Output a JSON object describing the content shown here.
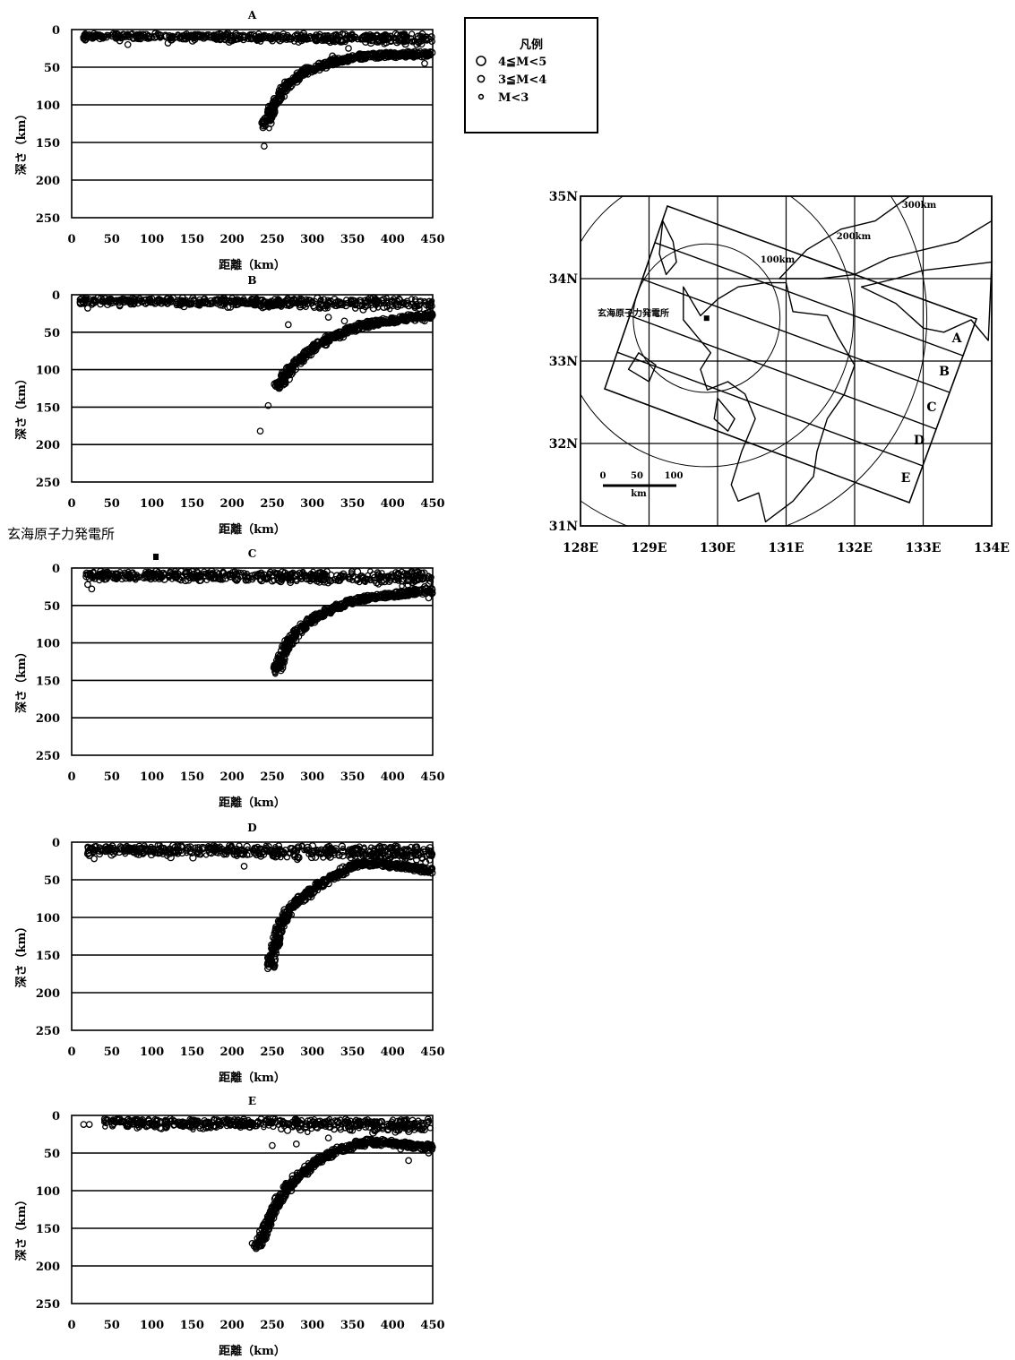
{
  "chart_data": [
    {
      "type": "scatter",
      "title": "A",
      "xlabel": "距離（km）",
      "ylabel": "深さ（km）",
      "xlim": [
        0,
        450
      ],
      "ylim": [
        250,
        0
      ],
      "x_ticks": [
        "0",
        "50",
        "100",
        "150",
        "200",
        "250",
        "300",
        "350",
        "400",
        "450"
      ],
      "y_ticks": [
        "0",
        "50",
        "100",
        "150",
        "200",
        "250"
      ],
      "grid": "horizontal",
      "shallow_band": {
        "x_range": [
          15,
          450
        ],
        "depth_range": [
          5,
          22
        ]
      },
      "slab_curve": [
        [
          450,
          32
        ],
        [
          420,
          33
        ],
        [
          390,
          34
        ],
        [
          360,
          36
        ],
        [
          340,
          40
        ],
        [
          320,
          45
        ],
        [
          300,
          52
        ],
        [
          285,
          60
        ],
        [
          270,
          72
        ],
        [
          260,
          85
        ],
        [
          252,
          100
        ],
        [
          245,
          118
        ],
        [
          242,
          128
        ]
      ],
      "points": [
        [
          15,
          12
        ],
        [
          17,
          14
        ],
        [
          20,
          10
        ],
        [
          240,
          155
        ],
        [
          325,
          35
        ],
        [
          345,
          25
        ],
        [
          365,
          33
        ],
        [
          430,
          20
        ],
        [
          440,
          45
        ],
        [
          120,
          18
        ],
        [
          60,
          15
        ],
        [
          70,
          20
        ],
        [
          200,
          12
        ]
      ]
    },
    {
      "type": "scatter",
      "title": "B",
      "xlabel": "距離（km）",
      "ylabel": "深さ（km）",
      "xlim": [
        0,
        450
      ],
      "ylim": [
        250,
        0
      ],
      "x_ticks": [
        "0",
        "50",
        "100",
        "150",
        "200",
        "250",
        "300",
        "350",
        "400",
        "450"
      ],
      "y_ticks": [
        "0",
        "50",
        "100",
        "150",
        "200",
        "250"
      ],
      "grid": "horizontal",
      "shallow_band": {
        "x_range": [
          10,
          450
        ],
        "depth_range": [
          4,
          24
        ]
      },
      "slab_curve": [
        [
          450,
          28
        ],
        [
          420,
          31
        ],
        [
          390,
          35
        ],
        [
          360,
          42
        ],
        [
          340,
          50
        ],
        [
          320,
          60
        ],
        [
          300,
          72
        ],
        [
          285,
          85
        ],
        [
          272,
          100
        ],
        [
          262,
          115
        ],
        [
          255,
          125
        ]
      ],
      "points": [
        [
          245,
          148
        ],
        [
          235,
          182
        ],
        [
          320,
          30
        ],
        [
          340,
          35
        ],
        [
          440,
          35
        ],
        [
          20,
          18
        ],
        [
          60,
          15
        ],
        [
          130,
          10
        ],
        [
          220,
          12
        ],
        [
          270,
          40
        ]
      ]
    },
    {
      "type": "scatter",
      "title": "C",
      "xlabel": "距離（km）",
      "ylabel": "深さ（km）",
      "xlim": [
        0,
        450
      ],
      "ylim": [
        250,
        0
      ],
      "x_ticks": [
        "0",
        "50",
        "100",
        "150",
        "200",
        "250",
        "300",
        "350",
        "400",
        "450"
      ],
      "y_ticks": [
        "0",
        "50",
        "100",
        "150",
        "200",
        "250"
      ],
      "grid": "horizontal",
      "annotation": "玄海原子力発電所",
      "marker_x": 105,
      "shallow_band": {
        "x_range": [
          18,
          450
        ],
        "depth_range": [
          4,
          28
        ]
      },
      "slab_curve": [
        [
          450,
          30
        ],
        [
          420,
          33
        ],
        [
          390,
          37
        ],
        [
          360,
          42
        ],
        [
          340,
          48
        ],
        [
          325,
          55
        ],
        [
          310,
          62
        ],
        [
          295,
          72
        ],
        [
          282,
          85
        ],
        [
          270,
          100
        ],
        [
          262,
          115
        ],
        [
          258,
          130
        ],
        [
          256,
          140
        ]
      ],
      "points": [
        [
          20,
          22
        ],
        [
          25,
          28
        ],
        [
          440,
          25
        ],
        [
          445,
          40
        ],
        [
          300,
          15
        ],
        [
          380,
          20
        ],
        [
          160,
          12
        ],
        [
          250,
          10
        ]
      ]
    },
    {
      "type": "scatter",
      "title": "D",
      "xlabel": "距離（km）",
      "ylabel": "深さ（km）",
      "xlim": [
        0,
        450
      ],
      "ylim": [
        250,
        0
      ],
      "x_ticks": [
        "0",
        "50",
        "100",
        "150",
        "200",
        "250",
        "300",
        "350",
        "400",
        "450"
      ],
      "y_ticks": [
        "0",
        "50",
        "100",
        "150",
        "200",
        "250"
      ],
      "grid": "horizontal",
      "shallow_band": {
        "x_range": [
          18,
          450
        ],
        "depth_range": [
          4,
          30
        ]
      },
      "slab_curve": [
        [
          450,
          38
        ],
        [
          420,
          33
        ],
        [
          400,
          30
        ],
        [
          380,
          28
        ],
        [
          355,
          30
        ],
        [
          335,
          40
        ],
        [
          320,
          50
        ],
        [
          305,
          60
        ],
        [
          290,
          72
        ],
        [
          275,
          85
        ],
        [
          265,
          100
        ],
        [
          258,
          115
        ],
        [
          254,
          135
        ],
        [
          250,
          150
        ],
        [
          248,
          165
        ]
      ],
      "points": [
        [
          22,
          18
        ],
        [
          28,
          22
        ],
        [
          215,
          32
        ],
        [
          345,
          12
        ],
        [
          440,
          40
        ],
        [
          445,
          38
        ],
        [
          180,
          10
        ],
        [
          90,
          14
        ]
      ]
    },
    {
      "type": "scatter",
      "title": "E",
      "xlabel": "距離（km）",
      "ylabel": "深さ（km）",
      "xlim": [
        0,
        450
      ],
      "ylim": [
        250,
        0
      ],
      "x_ticks": [
        "0",
        "50",
        "100",
        "150",
        "200",
        "250",
        "300",
        "350",
        "400",
        "450"
      ],
      "y_ticks": [
        "0",
        "50",
        "100",
        "150",
        "200",
        "250"
      ],
      "grid": "horizontal",
      "shallow_band": {
        "x_range": [
          40,
          450
        ],
        "depth_range": [
          4,
          28
        ]
      },
      "slab_curve": [
        [
          450,
          42
        ],
        [
          420,
          40
        ],
        [
          395,
          36
        ],
        [
          370,
          35
        ],
        [
          350,
          40
        ],
        [
          330,
          48
        ],
        [
          310,
          58
        ],
        [
          295,
          70
        ],
        [
          282,
          82
        ],
        [
          270,
          95
        ],
        [
          260,
          110
        ],
        [
          252,
          125
        ],
        [
          246,
          140
        ],
        [
          240,
          155
        ],
        [
          235,
          168
        ],
        [
          232,
          175
        ]
      ],
      "points": [
        [
          15,
          12
        ],
        [
          22,
          12
        ],
        [
          250,
          40
        ],
        [
          280,
          38
        ],
        [
          320,
          30
        ],
        [
          445,
          8
        ],
        [
          440,
          45
        ],
        [
          445,
          50
        ],
        [
          350,
          20
        ],
        [
          410,
          45
        ],
        [
          420,
          60
        ],
        [
          230,
          175
        ],
        [
          225,
          170
        ]
      ]
    }
  ],
  "legend": {
    "title": "凡例",
    "items": [
      {
        "symbol": "large-circle",
        "label": "4≦M<5"
      },
      {
        "symbol": "medium-circle",
        "label": "3≦M<4"
      },
      {
        "symbol": "small-circle",
        "label": "M<3"
      }
    ]
  },
  "map": {
    "lat_ticks": [
      "35N",
      "34N",
      "33N",
      "32N",
      "31N"
    ],
    "lon_ticks": [
      "128E",
      "129E",
      "130E",
      "131E",
      "132E",
      "133E",
      "134E"
    ],
    "lat_range": [
      31,
      35
    ],
    "lon_range": [
      128,
      134
    ],
    "site_label": "玄海原子力発電所",
    "site": {
      "lat": 33.52,
      "lon": 129.84
    },
    "ring_labels": [
      "100km",
      "200km",
      "300km"
    ],
    "ring_radii_km": [
      100,
      200,
      300
    ],
    "strip_labels": [
      "A",
      "B",
      "C",
      "D",
      "E"
    ],
    "scale_bar": {
      "ticks": [
        "0",
        "50",
        "100"
      ],
      "unit": "km"
    }
  }
}
